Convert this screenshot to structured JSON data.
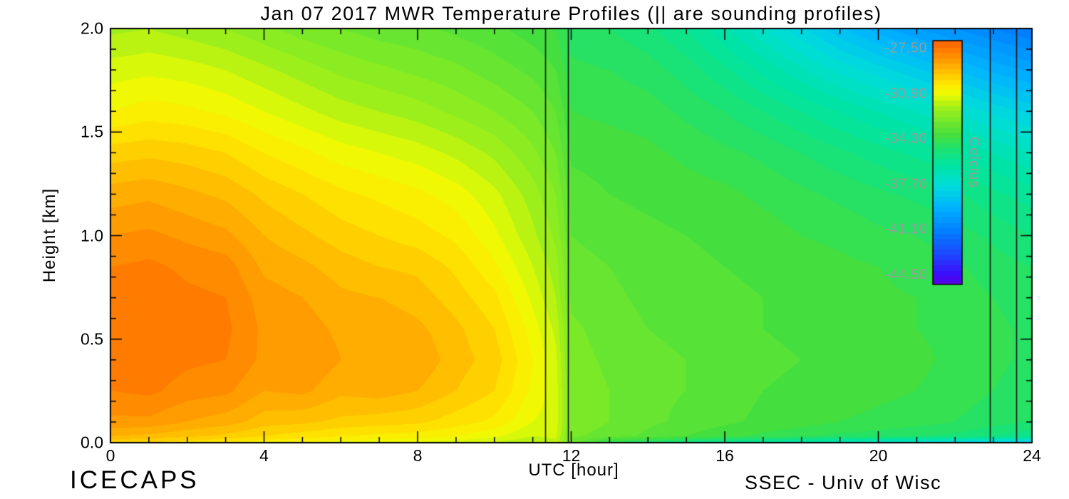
{
  "footer": {
    "left": "ICECAPS",
    "right": "SSEC - Univ of Wisc"
  },
  "chart_data": {
    "type": "heatmap",
    "title": "Jan 07 2017 MWR Temperature Profiles (|| are sounding profiles)",
    "xlabel": "UTC [hour]",
    "ylabel": "Height [km]",
    "xlim": [
      0,
      24
    ],
    "ylim": [
      0.0,
      2.0
    ],
    "x_major_ticks": [
      0,
      4,
      8,
      12,
      16,
      20,
      24
    ],
    "x_major_tick_labels": [
      "0",
      "4",
      "8",
      "12",
      "16",
      "20",
      "24"
    ],
    "x_minor_tick_step_hours": 1,
    "y_major_ticks": [
      0.0,
      0.5,
      1.0,
      1.5,
      2.0
    ],
    "y_major_tick_labels": [
      "0.0",
      "0.5",
      "1.0",
      "1.5",
      "2.0"
    ],
    "y_minor_tick_step_km": 0.1,
    "sounding_profile_hours": [
      11.32,
      11.92,
      22.9,
      23.6
    ],
    "contour_interval_c": 0.4,
    "contour_base_c": -45.8,
    "hours": [
      0,
      1,
      2,
      3,
      4,
      5,
      6,
      7,
      8,
      9,
      10,
      11,
      11.6,
      12,
      13,
      14,
      15,
      16,
      17,
      18,
      19,
      20,
      21,
      22,
      23,
      24
    ],
    "heights_km": [
      0.0,
      0.03,
      0.1,
      0.25,
      0.4,
      0.55,
      0.7,
      0.85,
      1.0,
      1.2,
      1.4,
      1.6,
      1.8,
      2.0
    ],
    "temperature_c": [
      [
        -29.6,
        -29.0,
        -28.3,
        -27.8,
        -27.6,
        -27.5,
        -27.6,
        -27.8,
        -28.2,
        -28.8,
        -29.6,
        -30.6,
        -31.2,
        -31.9
      ],
      [
        -29.8,
        -29.1,
        -28.3,
        -27.7,
        -27.5,
        -27.4,
        -27.5,
        -27.7,
        -28.1,
        -28.7,
        -29.5,
        -30.4,
        -31.1,
        -31.8
      ],
      [
        -30.0,
        -29.3,
        -28.6,
        -28.0,
        -27.7,
        -27.6,
        -27.7,
        -27.9,
        -28.3,
        -28.9,
        -29.6,
        -30.5,
        -31.2,
        -32.0
      ],
      [
        -30.2,
        -29.5,
        -28.8,
        -28.1,
        -27.8,
        -27.7,
        -27.8,
        -28.0,
        -28.5,
        -29.1,
        -29.8,
        -30.7,
        -31.4,
        -32.2
      ],
      [
        -30.5,
        -29.8,
        -29.2,
        -28.6,
        -28.3,
        -28.3,
        -28.4,
        -28.7,
        -29.0,
        -29.5,
        -30.2,
        -31.0,
        -31.7,
        -32.5
      ],
      [
        -30.6,
        -30.0,
        -29.3,
        -28.5,
        -28.2,
        -28.4,
        -28.6,
        -28.9,
        -29.3,
        -29.8,
        -30.5,
        -31.3,
        -32.0,
        -32.8
      ],
      [
        -30.8,
        -30.2,
        -29.5,
        -28.9,
        -28.6,
        -28.7,
        -28.9,
        -29.2,
        -29.6,
        -30.1,
        -30.8,
        -31.6,
        -32.3,
        -33.0
      ],
      [
        -30.9,
        -30.3,
        -29.6,
        -28.8,
        -28.6,
        -28.7,
        -29.0,
        -29.4,
        -29.8,
        -30.3,
        -31.0,
        -31.8,
        -32.5,
        -33.2
      ],
      [
        -31.0,
        -30.4,
        -29.7,
        -29.0,
        -28.7,
        -28.9,
        -29.2,
        -29.5,
        -30.0,
        -30.5,
        -31.2,
        -32.0,
        -32.7,
        -33.3
      ],
      [
        -31.2,
        -30.6,
        -30.0,
        -29.4,
        -29.2,
        -29.3,
        -29.6,
        -29.9,
        -30.3,
        -30.8,
        -31.5,
        -32.3,
        -32.9,
        -33.5
      ],
      [
        -31.4,
        -30.9,
        -30.3,
        -29.8,
        -29.6,
        -29.8,
        -30.1,
        -30.5,
        -30.9,
        -31.3,
        -31.9,
        -32.6,
        -33.2,
        -33.7
      ],
      [
        -31.8,
        -31.4,
        -31.0,
        -30.7,
        -30.6,
        -30.8,
        -31.1,
        -31.4,
        -31.7,
        -32.0,
        -32.5,
        -33.0,
        -33.5,
        -34.0
      ],
      [
        -31.5,
        -31.3,
        -31.2,
        -31.2,
        -31.3,
        -31.5,
        -31.8,
        -32.0,
        -32.3,
        -32.6,
        -33.0,
        -33.4,
        -33.8,
        -34.2
      ],
      [
        -33.1,
        -32.9,
        -32.7,
        -32.7,
        -32.8,
        -32.9,
        -33.1,
        -33.2,
        -33.4,
        -33.6,
        -33.9,
        -34.2,
        -34.5,
        -34.8
      ],
      [
        -34.5,
        -33.2,
        -33.0,
        -33.0,
        -33.1,
        -33.2,
        -33.3,
        -33.4,
        -33.6,
        -33.8,
        -34.0,
        -34.3,
        -34.6,
        -35.0
      ],
      [
        -35.0,
        -33.5,
        -33.3,
        -33.3,
        -33.3,
        -33.4,
        -33.5,
        -33.6,
        -33.7,
        -33.9,
        -34.1,
        -34.4,
        -34.8,
        -35.3
      ],
      [
        -35.5,
        -33.8,
        -33.5,
        -33.4,
        -33.4,
        -33.5,
        -33.6,
        -33.7,
        -33.8,
        -34.0,
        -34.3,
        -34.7,
        -35.2,
        -35.8
      ],
      [
        -36.0,
        -34.1,
        -33.7,
        -33.6,
        -33.6,
        -33.6,
        -33.7,
        -33.8,
        -33.9,
        -34.1,
        -34.5,
        -35.0,
        -35.7,
        -36.5
      ],
      [
        -36.3,
        -34.3,
        -33.9,
        -33.8,
        -33.7,
        -33.8,
        -33.8,
        -33.9,
        -34.0,
        -34.3,
        -34.7,
        -35.4,
        -36.3,
        -37.3
      ],
      [
        -36.6,
        -34.5,
        -34.0,
        -33.9,
        -33.8,
        -33.9,
        -33.9,
        -34.0,
        -34.2,
        -34.5,
        -35.0,
        -35.8,
        -36.9,
        -38.1
      ],
      [
        -37.0,
        -34.7,
        -34.2,
        -34.0,
        -34.0,
        -34.0,
        -34.0,
        -34.1,
        -34.3,
        -34.7,
        -35.3,
        -36.2,
        -37.5,
        -38.9
      ],
      [
        -37.3,
        -34.8,
        -34.3,
        -34.1,
        -34.0,
        -34.1,
        -34.1,
        -34.2,
        -34.5,
        -34.9,
        -35.6,
        -36.6,
        -38.0,
        -39.6
      ],
      [
        -37.6,
        -35.0,
        -34.4,
        -34.2,
        -34.1,
        -34.2,
        -34.2,
        -34.4,
        -34.6,
        -35.1,
        -35.9,
        -37.0,
        -38.5,
        -40.2
      ],
      [
        -38.0,
        -35.1,
        -34.6,
        -34.4,
        -34.3,
        -34.3,
        -34.4,
        -34.5,
        -34.8,
        -35.3,
        -36.2,
        -37.4,
        -39.0,
        -40.6
      ],
      [
        -38.3,
        -35.4,
        -34.8,
        -34.6,
        -34.5,
        -34.5,
        -34.6,
        -34.8,
        -35.1,
        -35.7,
        -36.6,
        -37.9,
        -39.5,
        -41.0
      ],
      [
        -38.6,
        -35.7,
        -35.0,
        -34.8,
        -34.7,
        -34.7,
        -34.8,
        -35.0,
        -35.4,
        -36.0,
        -37.0,
        -38.3,
        -39.9,
        -41.4
      ]
    ],
    "color_stops": [
      [
        -45.8,
        "#7100dc"
      ],
      [
        -44.5,
        "#3c0cf8"
      ],
      [
        -43.0,
        "#1e46ff"
      ],
      [
        -41.1,
        "#0082ff"
      ],
      [
        -39.4,
        "#00b4ff"
      ],
      [
        -37.7,
        "#00ded8"
      ],
      [
        -36.2,
        "#00e4a0"
      ],
      [
        -35.0,
        "#1ee26e"
      ],
      [
        -34.0,
        "#44df3e"
      ],
      [
        -33.0,
        "#70e72c"
      ],
      [
        -32.0,
        "#9cef1a"
      ],
      [
        -30.9,
        "#eefb02"
      ],
      [
        -30.2,
        "#ffe900"
      ],
      [
        -29.4,
        "#ffc800"
      ],
      [
        -28.6,
        "#ffa400"
      ],
      [
        -27.8,
        "#ff8400"
      ],
      [
        -27.0,
        "#ff6600"
      ],
      [
        -26.0,
        "#fa4800"
      ]
    ],
    "colorbar": {
      "label": "Celcius",
      "top_value_c": -26.9,
      "bottom_value_c": -45.2,
      "tick_values": [
        -27.5,
        -30.9,
        -34.3,
        -37.7,
        -41.1,
        -44.5
      ],
      "tick_labels": [
        "-27.50",
        "-30.90",
        "-34.30",
        "-37.70",
        "-41.10",
        "-44.50"
      ],
      "text_color": "#94a09a"
    }
  }
}
